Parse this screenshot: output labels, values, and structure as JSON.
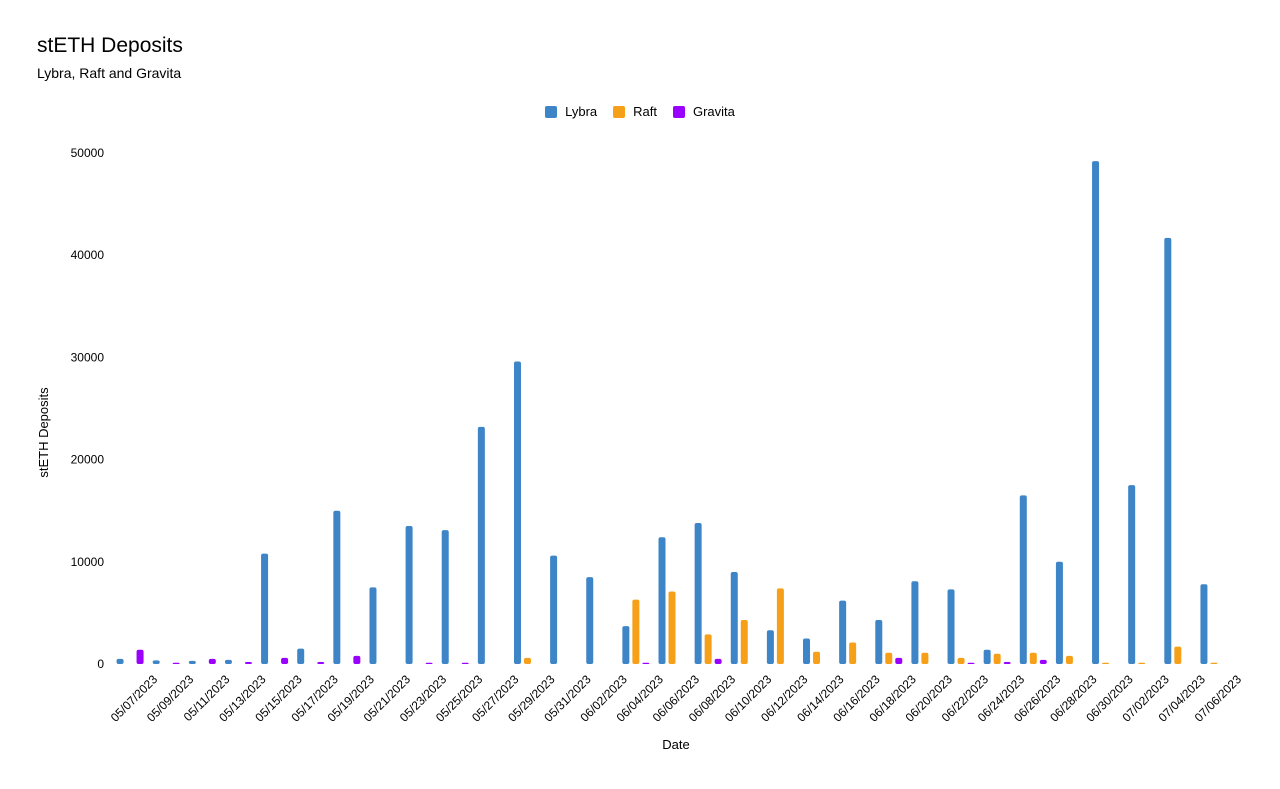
{
  "chart_data": {
    "type": "bar",
    "title": "stETH Deposits",
    "subtitle": "Lybra, Raft and Gravita",
    "xlabel": "Date",
    "ylabel": "stETH Deposits",
    "ylim": [
      0,
      50000
    ],
    "yticks": [
      0,
      10000,
      20000,
      30000,
      40000,
      50000
    ],
    "legend_position": "top-center",
    "grid": false,
    "categories": [
      "05/07/2023",
      "05/09/2023",
      "05/11/2023",
      "05/13/2023",
      "05/15/2023",
      "05/17/2023",
      "05/19/2023",
      "05/21/2023",
      "05/23/2023",
      "05/25/2023",
      "05/27/2023",
      "05/29/2023",
      "05/31/2023",
      "06/02/2023",
      "06/04/2023",
      "06/06/2023",
      "06/08/2023",
      "06/10/2023",
      "06/12/2023",
      "06/14/2023",
      "06/16/2023",
      "06/18/2023",
      "06/20/2023",
      "06/22/2023",
      "06/24/2023",
      "06/26/2023",
      "06/28/2023",
      "06/30/2023",
      "07/02/2023",
      "07/04/2023",
      "07/06/2023"
    ],
    "series": [
      {
        "name": "Lybra",
        "color": "#3d85c6",
        "values": [
          500,
          350,
          300,
          400,
          10800,
          1500,
          15000,
          7500,
          13500,
          13100,
          23200,
          29600,
          10600,
          8500,
          3700,
          12400,
          13800,
          9000,
          3300,
          2500,
          6200,
          4300,
          8100,
          7300,
          1400,
          16500,
          10000,
          49200,
          17500,
          41700,
          7800
        ]
      },
      {
        "name": "Raft",
        "color": "#f6a01a",
        "values": [
          0,
          0,
          0,
          0,
          0,
          0,
          0,
          0,
          0,
          0,
          0,
          600,
          0,
          0,
          6300,
          7100,
          2900,
          4300,
          7400,
          1200,
          2100,
          1100,
          1100,
          600,
          1000,
          1100,
          800,
          100,
          100,
          1700,
          100
        ]
      },
      {
        "name": "Gravita",
        "color": "#9900ff",
        "values": [
          1400,
          100,
          500,
          200,
          600,
          200,
          800,
          0,
          100,
          100,
          0,
          0,
          0,
          0,
          100,
          0,
          500,
          0,
          0,
          0,
          0,
          600,
          0,
          100,
          200,
          400,
          0,
          0,
          0,
          0,
          0
        ]
      }
    ]
  }
}
